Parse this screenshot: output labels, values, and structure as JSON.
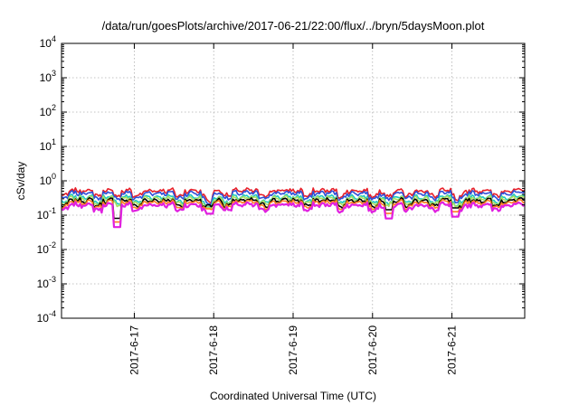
{
  "chart_data": {
    "type": "line",
    "title": "/data/run/goesPlots/archive/2017-06-21/22:00/flux/../bryn/5daysMoon.plot",
    "xlabel": "Coordinated Universal Time (UTC)",
    "ylabel": "cSv/day",
    "yscale": "log",
    "ylim": [
      0.0001,
      10000
    ],
    "xlim": [
      "2017-06-16T02:00",
      "2017-06-21T22:00"
    ],
    "x_tick_labels": [
      "2017-6-17",
      "2017-6-18",
      "2017-6-19",
      "2017-6-20",
      "2017-6-21"
    ],
    "x_tick_dates": [
      "2017-06-17T00:00",
      "2017-06-18T00:00",
      "2017-06-19T00:00",
      "2017-06-20T00:00",
      "2017-06-21T00:00"
    ],
    "y_ticks": [
      {
        "base": "10",
        "exp": "-4",
        "value": 0.0001
      },
      {
        "base": "10",
        "exp": "-3",
        "value": 0.001
      },
      {
        "base": "10",
        "exp": "-2",
        "value": 0.01
      },
      {
        "base": "10",
        "exp": "-1",
        "value": 0.1
      },
      {
        "base": "10",
        "exp": "0",
        "value": 1
      },
      {
        "base": "10",
        "exp": "1",
        "value": 10
      },
      {
        "base": "10",
        "exp": "2",
        "value": 100
      },
      {
        "base": "10",
        "exp": "3",
        "value": 1000
      },
      {
        "base": "10",
        "exp": "4",
        "value": 10000
      }
    ],
    "grid": true,
    "legend": "none",
    "series": [
      {
        "color": "#e8202a",
        "base_value": 0.52
      },
      {
        "color": "#2e4fd8",
        "base_value": 0.44
      },
      {
        "color": "#20c8c0",
        "base_value": 0.34
      },
      {
        "color": "#a8e060",
        "base_value": 0.31
      },
      {
        "color": "#000000",
        "base_value": 0.27
      },
      {
        "color": "#ff8020",
        "base_value": 0.24
      },
      {
        "color": "#e020e0",
        "base_value": 0.2
      }
    ],
    "notable_dips": [
      {
        "x": "2017-06-16T19:00",
        "min_value": 0.045
      },
      {
        "x": "2017-06-17T23:00",
        "min_value": 0.11
      },
      {
        "x": "2017-06-20T05:00",
        "min_value": 0.08
      },
      {
        "x": "2017-06-21T01:00",
        "min_value": 0.09
      }
    ]
  }
}
